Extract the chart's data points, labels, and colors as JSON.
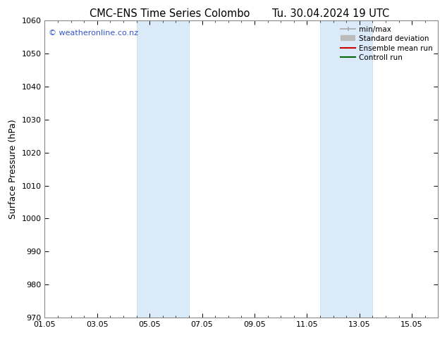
{
  "title_left": "CMC-ENS Time Series Colombo",
  "title_right": "Tu. 30.04.2024 19 UTC",
  "ylabel": "Surface Pressure (hPa)",
  "ylim": [
    970,
    1060
  ],
  "yticks": [
    970,
    980,
    990,
    1000,
    1010,
    1020,
    1030,
    1040,
    1050,
    1060
  ],
  "xlim": [
    0,
    15
  ],
  "xtick_labels": [
    "01.05",
    "03.05",
    "05.05",
    "07.05",
    "09.05",
    "11.05",
    "13.05",
    "15.05"
  ],
  "xtick_positions": [
    0,
    2,
    4,
    6,
    8,
    10,
    12,
    14
  ],
  "minor_xtick_positions": [
    0,
    0.5,
    1,
    1.5,
    2,
    2.5,
    3,
    3.5,
    4,
    4.5,
    5,
    5.5,
    6,
    6.5,
    7,
    7.5,
    8,
    8.5,
    9,
    9.5,
    10,
    10.5,
    11,
    11.5,
    12,
    12.5,
    13,
    13.5,
    14,
    14.5,
    15
  ],
  "shaded_bands": [
    {
      "x_start": 3.5,
      "x_end": 5.5
    },
    {
      "x_start": 10.5,
      "x_end": 12.5
    }
  ],
  "shaded_color": "#daeaf8",
  "shaded_edge_color": "#c5ddf0",
  "watermark_text": "© weatheronline.co.nz",
  "watermark_color": "#3355cc",
  "legend_items": [
    {
      "label": "min/max",
      "color": "#aaaaaa",
      "lw": 1.2,
      "style": "minmax"
    },
    {
      "label": "Standard deviation",
      "color": "#bbbbbb",
      "lw": 6,
      "style": "thick"
    },
    {
      "label": "Ensemble mean run",
      "color": "#cc0000",
      "lw": 1.5,
      "style": "line"
    },
    {
      "label": "Controll run",
      "color": "#006600",
      "lw": 1.5,
      "style": "line"
    }
  ],
  "bg_color": "#ffffff",
  "title_fontsize": 10.5,
  "label_fontsize": 9,
  "tick_fontsize": 8,
  "legend_fontsize": 7.5
}
